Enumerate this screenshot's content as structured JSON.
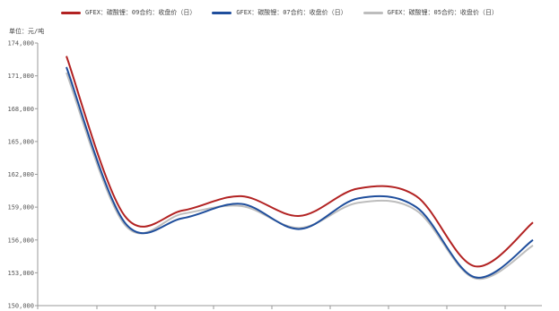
{
  "chart_data": {
    "type": "line",
    "unit_label": "单位：元/吨",
    "yticks": [
      "174,000",
      "171,000",
      "168,000",
      "165,000",
      "162,000",
      "159,000",
      "156,000",
      "153,000",
      "150,000"
    ],
    "ylim": [
      150000,
      174000
    ],
    "x": [
      0,
      1,
      2,
      3,
      4,
      5,
      6,
      7,
      8
    ],
    "legend_position": "top-center",
    "series": [
      {
        "name": "GFEX：碳酸锂：09合约：收盘价（日）",
        "color": "#b22222",
        "values": [
          172800,
          158200,
          158700,
          160000,
          158200,
          160700,
          160000,
          153600,
          157600
        ]
      },
      {
        "name": "GFEX：碳酸锂：07合约：收盘价（日）",
        "color": "#1f4e9c",
        "values": [
          171800,
          157600,
          158000,
          159300,
          157000,
          159800,
          159000,
          152600,
          156000
        ]
      },
      {
        "name": "GFEX：碳酸锂：05合约：收盘价（日）",
        "color": "#bdbdbd",
        "values": [
          171300,
          157400,
          158400,
          159100,
          157100,
          159400,
          158700,
          152500,
          155500
        ]
      }
    ]
  }
}
